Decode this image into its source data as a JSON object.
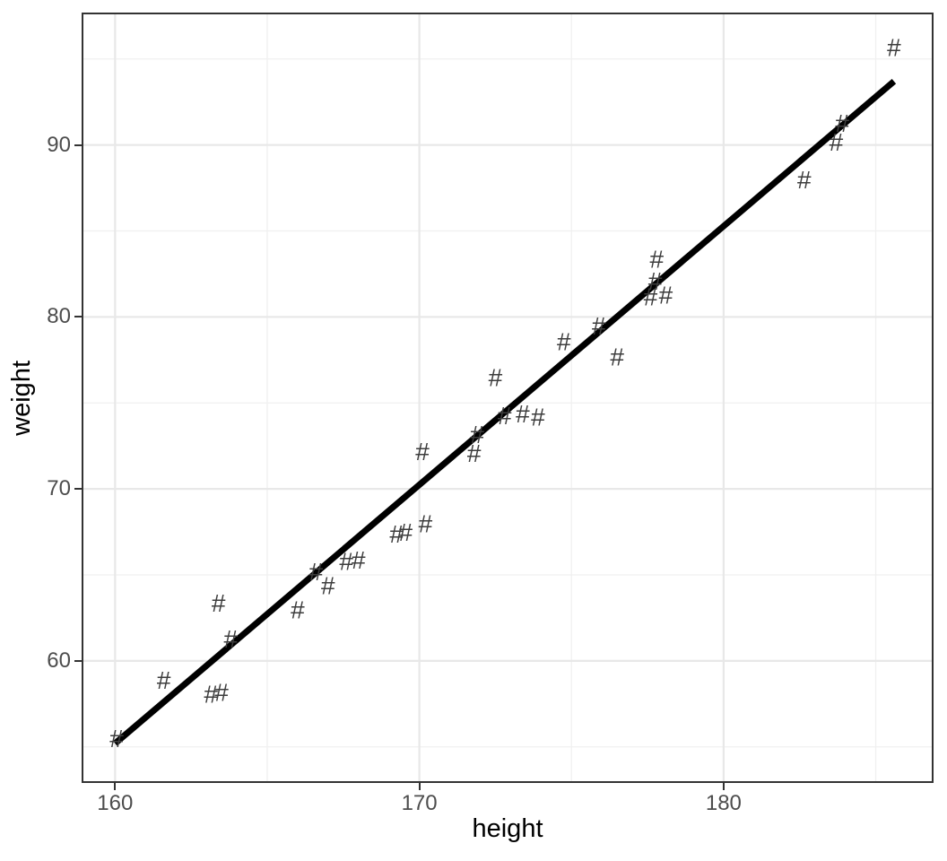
{
  "chart_data": {
    "type": "scatter",
    "title": "",
    "xlabel": "height",
    "ylabel": "weight",
    "marker_glyph": "#",
    "legend": "none",
    "grid": "on",
    "xlim": [
      158.9,
      186.9
    ],
    "ylim": [
      52.9,
      97.7
    ],
    "x_major_ticks": [
      160,
      170,
      180
    ],
    "x_minor_gridlines": [
      165,
      175,
      185
    ],
    "y_major_ticks": [
      60,
      70,
      80,
      90
    ],
    "y_minor_gridlines": [
      55,
      65,
      75,
      85,
      95
    ],
    "points": [
      [
        160.05,
        55.5
      ],
      [
        161.6,
        58.9
      ],
      [
        163.15,
        58.1
      ],
      [
        163.5,
        58.2
      ],
      [
        163.8,
        61.3
      ],
      [
        163.4,
        63.4
      ],
      [
        166.0,
        63.0
      ],
      [
        166.6,
        65.2
      ],
      [
        167.0,
        64.4
      ],
      [
        167.6,
        65.8
      ],
      [
        168.0,
        65.9
      ],
      [
        169.25,
        67.4
      ],
      [
        169.55,
        67.5
      ],
      [
        170.2,
        68.0
      ],
      [
        170.1,
        72.2
      ],
      [
        171.8,
        72.1
      ],
      [
        171.9,
        73.2
      ],
      [
        172.5,
        76.5
      ],
      [
        172.8,
        74.3
      ],
      [
        173.4,
        74.4
      ],
      [
        173.9,
        74.2
      ],
      [
        174.75,
        78.6
      ],
      [
        175.9,
        79.5
      ],
      [
        176.5,
        77.7
      ],
      [
        177.6,
        81.2
      ],
      [
        178.1,
        81.3
      ],
      [
        177.75,
        82.1
      ],
      [
        177.8,
        83.4
      ],
      [
        182.65,
        88.0
      ],
      [
        183.7,
        90.2
      ],
      [
        183.9,
        91.3
      ],
      [
        185.6,
        95.7
      ]
    ],
    "regression_line": {
      "x1": 160.0,
      "y1": 55.2,
      "x2": 185.6,
      "y2": 93.7
    },
    "colors": {
      "background": "#ffffff",
      "panel_background": "#ffffff",
      "panel_border": "#333333",
      "grid_major": "#e8e8e8",
      "grid_minor": "#f0f0f0",
      "point": "#3d3d3d",
      "line": "#000000",
      "tick": "#333333",
      "tick_label": "#4d4d4d",
      "axis_title": "#000000"
    }
  }
}
